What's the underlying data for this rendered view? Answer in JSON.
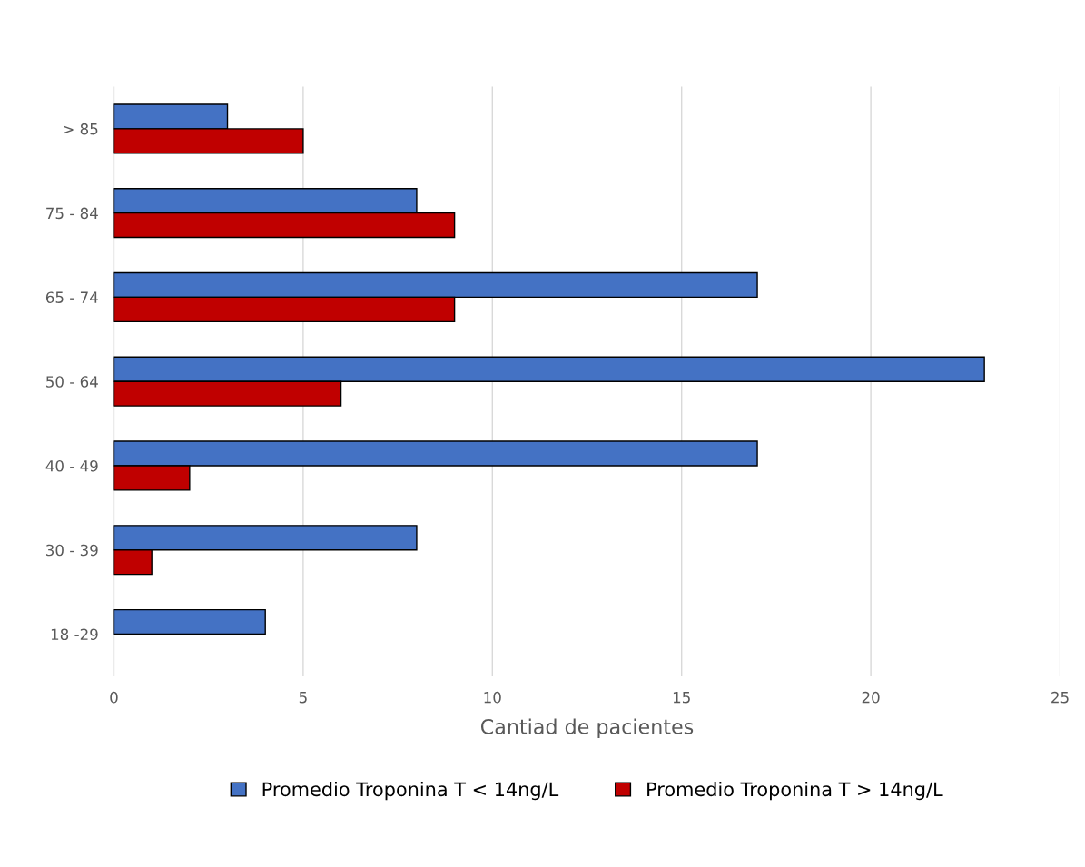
{
  "chart_data": {
    "type": "bar",
    "orientation": "horizontal",
    "xlabel": "Cantiad de pacientes",
    "categories": [
      "> 85",
      "75 - 84",
      "65 - 74",
      "50 - 64",
      "40 - 49",
      "30 - 39",
      "18 -29"
    ],
    "series": [
      {
        "name": "Promedio Troponina T < 14ng/L",
        "color": "#4472c4",
        "values": [
          3,
          8,
          17,
          23,
          17,
          8,
          4
        ]
      },
      {
        "name": "Promedio Troponina T > 14ng/L",
        "color": "#c00000",
        "values": [
          5,
          9,
          9,
          6,
          2,
          1,
          null
        ]
      }
    ],
    "xlim": [
      0,
      25
    ],
    "xticks": [
      0,
      5,
      10,
      15,
      20,
      25
    ],
    "grid": "x",
    "legend": "bottom"
  }
}
